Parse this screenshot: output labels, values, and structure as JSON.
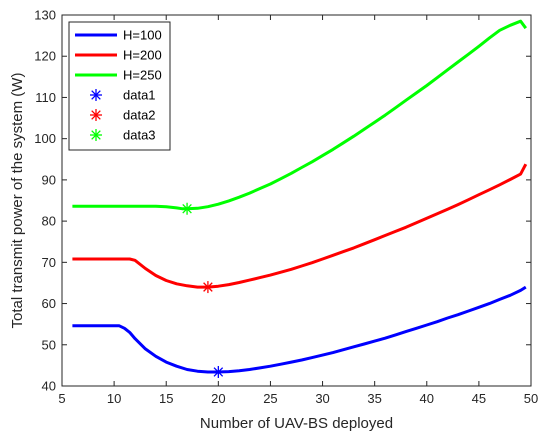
{
  "chart_data": {
    "type": "line",
    "xlabel": "Number of UAV-BS deployed",
    "ylabel": "Total transmit power of the system (W)",
    "xlim": [
      5,
      50
    ],
    "ylim": [
      40,
      130
    ],
    "xticks": [
      "5",
      "10",
      "15",
      "20",
      "25",
      "30",
      "35",
      "40",
      "45",
      "50"
    ],
    "yticks": [
      "40",
      "50",
      "60",
      "70",
      "80",
      "90",
      "100",
      "110",
      "120",
      "130"
    ],
    "grid": false,
    "legend_position": "top-left",
    "series": [
      {
        "name": "H=100",
        "color": "#0000ff",
        "x": [
          6,
          7,
          8,
          9,
          10,
          10.5,
          11,
          11.5,
          12,
          13,
          14,
          15,
          16,
          17,
          18,
          19,
          20,
          21,
          22,
          23,
          24,
          25,
          26,
          27,
          28,
          29,
          30,
          31,
          32,
          33,
          34,
          35,
          36,
          37,
          38,
          39,
          40,
          41,
          42,
          43,
          44,
          45,
          46,
          47,
          48,
          49,
          49.5
        ],
        "y": [
          54.6,
          54.6,
          54.6,
          54.6,
          54.6,
          54.6,
          54.0,
          53.0,
          51.5,
          49.0,
          47.2,
          45.8,
          44.8,
          44.0,
          43.6,
          43.4,
          43.4,
          43.5,
          43.7,
          44.0,
          44.4,
          44.8,
          45.3,
          45.8,
          46.3,
          46.9,
          47.5,
          48.1,
          48.8,
          49.5,
          50.2,
          50.9,
          51.6,
          52.4,
          53.2,
          54.0,
          54.8,
          55.6,
          56.5,
          57.3,
          58.2,
          59.1,
          60.0,
          61.0,
          62.0,
          63.2,
          64.0
        ]
      },
      {
        "name": "H=200",
        "color": "#ff0000",
        "x": [
          6,
          7,
          8,
          9,
          10,
          11,
          11.5,
          12,
          13,
          14,
          15,
          16,
          17,
          18,
          19,
          20,
          21,
          22,
          23,
          24,
          25,
          26,
          27,
          28,
          29,
          30,
          31,
          32,
          33,
          34,
          35,
          36,
          37,
          38,
          39,
          40,
          41,
          42,
          43,
          44,
          45,
          46,
          47,
          48,
          49,
          49.5
        ],
        "y": [
          70.8,
          70.8,
          70.8,
          70.8,
          70.8,
          70.8,
          70.8,
          70.5,
          68.5,
          66.8,
          65.6,
          64.8,
          64.3,
          64.0,
          64.0,
          64.2,
          64.6,
          65.1,
          65.7,
          66.3,
          66.9,
          67.6,
          68.3,
          69.1,
          69.9,
          70.8,
          71.7,
          72.6,
          73.5,
          74.5,
          75.5,
          76.5,
          77.5,
          78.5,
          79.6,
          80.7,
          81.8,
          82.9,
          84.0,
          85.2,
          86.4,
          87.6,
          88.8,
          90.1,
          91.4,
          93.8
        ]
      },
      {
        "name": "H=250",
        "color": "#00ff00",
        "x": [
          6,
          7,
          8,
          9,
          10,
          11,
          12,
          13,
          14,
          15,
          16,
          16.5,
          17,
          18,
          19,
          20,
          21,
          22,
          23,
          24,
          25,
          26,
          27,
          28,
          29,
          30,
          31,
          32,
          33,
          34,
          35,
          36,
          37,
          38,
          39,
          40,
          41,
          42,
          43,
          44,
          45,
          46,
          47,
          48,
          49,
          49.5
        ],
        "y": [
          83.6,
          83.6,
          83.6,
          83.6,
          83.6,
          83.6,
          83.6,
          83.6,
          83.6,
          83.5,
          83.2,
          83.0,
          83.0,
          83.1,
          83.5,
          84.1,
          84.9,
          85.8,
          86.8,
          87.9,
          89.0,
          90.3,
          91.6,
          93.0,
          94.4,
          95.9,
          97.4,
          99.0,
          100.6,
          102.3,
          104.0,
          105.7,
          107.5,
          109.3,
          111.1,
          112.9,
          114.8,
          116.7,
          118.6,
          120.5,
          122.4,
          124.4,
          126.3,
          127.5,
          128.5,
          126.8
        ]
      }
    ],
    "markers": [
      {
        "name": "data1",
        "color": "#0000ff",
        "x": 20,
        "y": 43.4
      },
      {
        "name": "data2",
        "color": "#ff0000",
        "x": 19,
        "y": 64.0
      },
      {
        "name": "data3",
        "color": "#00ff00",
        "x": 17,
        "y": 83.0
      }
    ]
  }
}
